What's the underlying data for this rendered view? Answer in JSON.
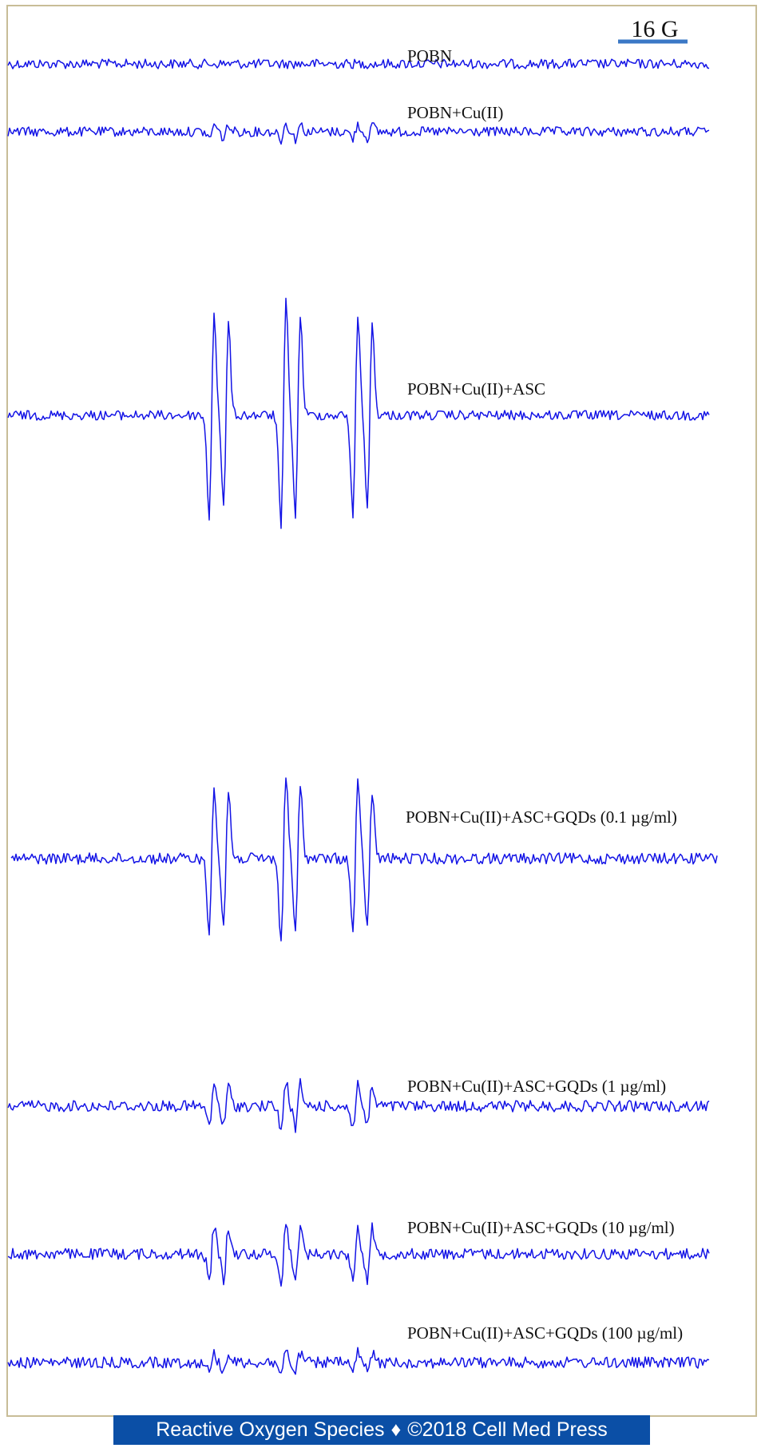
{
  "figure": {
    "scale_bar_label": "16 G",
    "footer": {
      "journal": "Reactive Oxygen Species",
      "separator": "♦",
      "copyright": "©2018 Cell Med Press"
    },
    "colors": {
      "trace": "#1414e6",
      "scale_bar": "#3b78c6",
      "frame": "#c8bd97",
      "footer_bg": "#0b4fa6"
    }
  },
  "chart_data": {
    "type": "line",
    "title": "",
    "xlabel": "",
    "ylabel": "",
    "scale_bar": "16 G",
    "grid": false,
    "series": [
      {
        "name": "POBN",
        "relative_peak_intensity": 0.0
      },
      {
        "name": "POBN+Cu(II)",
        "relative_peak_intensity": 0.07
      },
      {
        "name": "POBN+Cu(II)+ASC",
        "relative_peak_intensity": 1.0
      },
      {
        "name": "POBN+Cu(II)+ASC+GQDs (0.1 µg/ml)",
        "relative_peak_intensity": 0.74
      },
      {
        "name": "POBN+Cu(II)+ASC+GQDs (1 µg/ml)",
        "relative_peak_intensity": 0.22
      },
      {
        "name": "POBN+Cu(II)+ASC+GQDs (10 µg/ml)",
        "relative_peak_intensity": 0.28
      },
      {
        "name": "POBN+Cu(II)+ASC+GQDs (100 µg/ml)",
        "relative_peak_intensity": 0.1
      }
    ]
  }
}
